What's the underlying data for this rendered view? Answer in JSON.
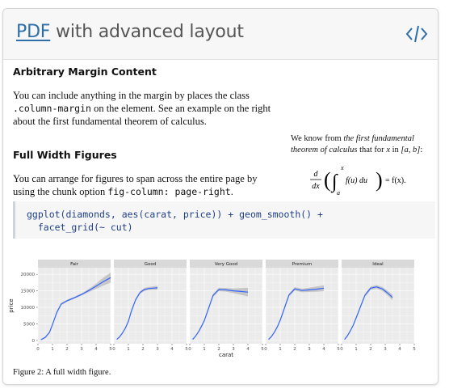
{
  "header": {
    "title_link": "PDF",
    "title_rest": " with advanced layout",
    "code_icon": "code-icon"
  },
  "sections": {
    "margin": {
      "heading": "Arbitrary Margin Content",
      "line1": "You can include anything in the margin by places the class",
      "line2_code": ".column-margin",
      "line2_rest": " on the element. See an example on the right",
      "line3": "about the first fundamental theorem of calculus."
    },
    "fullwidth": {
      "heading": "Full Width Figures",
      "line1": "You can arrange for figures to span across the entire page by",
      "line2_text": "using the chunk option ",
      "line2_code": "fig-column: page-right",
      "line2_end": "."
    }
  },
  "margin_note": {
    "text1": "We know from ",
    "italic1": "the first fundamental",
    "italic2": "theorem of calculus",
    "text2": " that for ",
    "var_x": "x",
    "text3": " in ",
    "interval": "[a, b]",
    "text4": ":",
    "eq_d": "d",
    "eq_dx": "dx",
    "eq_upper": "x",
    "eq_lower": "a",
    "eq_body": "f(u) du",
    "eq_rhs": "= f(x)."
  },
  "code": {
    "line1": "ggplot(diamonds, aes(carat, price)) + geom_smooth() +",
    "line2": "  facet_grid(~ cut)"
  },
  "chart_data": {
    "type": "line",
    "facets": [
      "Fair",
      "Good",
      "Very Good",
      "Premium",
      "Ideal"
    ],
    "xlabel": "carat",
    "ylabel": "price",
    "xlim": [
      0,
      5
    ],
    "ylim": [
      -1000,
      22000
    ],
    "x_ticks": [
      0,
      1,
      2,
      3,
      4,
      5
    ],
    "y_ticks": [
      0,
      5000,
      10000,
      15000,
      20000
    ],
    "y_tick_labels": [
      "0",
      "5000",
      "10000",
      "15000",
      "20000"
    ],
    "grid": true,
    "series": [
      {
        "facet": "Fair",
        "x": [
          0.2,
          0.5,
          0.8,
          1.0,
          1.3,
          1.6,
          2.0,
          2.5,
          3.0,
          3.5,
          4.0,
          4.5,
          5.0
        ],
        "y": [
          200,
          900,
          2500,
          4800,
          8500,
          11000,
          12000,
          12900,
          13900,
          15100,
          16400,
          17800,
          19000
        ],
        "band": [
          200,
          250,
          300,
          350,
          400,
          350,
          300,
          300,
          350,
          500,
          800,
          1200,
          1500
        ]
      },
      {
        "facet": "Good",
        "x": [
          0.2,
          0.4,
          0.6,
          0.8,
          1.0,
          1.2,
          1.5,
          1.8,
          2.1,
          2.4,
          2.7,
          3.0
        ],
        "y": [
          300,
          1100,
          2300,
          3800,
          5800,
          8800,
          12300,
          14500,
          15400,
          15700,
          15800,
          15900
        ],
        "band": [
          200,
          220,
          250,
          300,
          350,
          380,
          400,
          400,
          450,
          500,
          550,
          600
        ]
      },
      {
        "facet": "Very Good",
        "x": [
          0.2,
          0.4,
          0.6,
          0.8,
          1.0,
          1.3,
          1.6,
          2.0,
          2.5,
          3.0,
          3.5,
          4.0
        ],
        "y": [
          300,
          1300,
          2600,
          4200,
          6000,
          9800,
          13600,
          15400,
          15300,
          15000,
          14800,
          14600
        ],
        "band": [
          200,
          220,
          250,
          300,
          350,
          400,
          450,
          500,
          550,
          700,
          1000,
          1300
        ]
      },
      {
        "facet": "Premium",
        "x": [
          0.2,
          0.4,
          0.6,
          0.8,
          1.0,
          1.3,
          1.6,
          2.0,
          2.5,
          3.0,
          3.5,
          4.0
        ],
        "y": [
          300,
          1200,
          2500,
          4100,
          6100,
          9900,
          13700,
          15600,
          15100,
          15300,
          15500,
          15800
        ],
        "band": [
          200,
          220,
          250,
          300,
          350,
          400,
          450,
          500,
          550,
          650,
          800,
          900
        ]
      },
      {
        "facet": "Ideal",
        "x": [
          0.2,
          0.4,
          0.6,
          0.8,
          1.0,
          1.3,
          1.6,
          2.0,
          2.4,
          2.8,
          3.2,
          3.5
        ],
        "y": [
          300,
          1400,
          2900,
          4600,
          6800,
          10200,
          13600,
          15800,
          16200,
          15600,
          14200,
          13000
        ],
        "band": [
          200,
          220,
          250,
          300,
          350,
          400,
          450,
          500,
          550,
          600,
          700,
          900
        ]
      }
    ]
  },
  "caption": {
    "label": "Figure 2:",
    "text": " A full width figure."
  },
  "colors": {
    "line": "#3366ff",
    "band": "#bfbfbf",
    "panel": "#ebebeb",
    "strip": "#d9d9d9",
    "link": "#2f6fa8"
  }
}
